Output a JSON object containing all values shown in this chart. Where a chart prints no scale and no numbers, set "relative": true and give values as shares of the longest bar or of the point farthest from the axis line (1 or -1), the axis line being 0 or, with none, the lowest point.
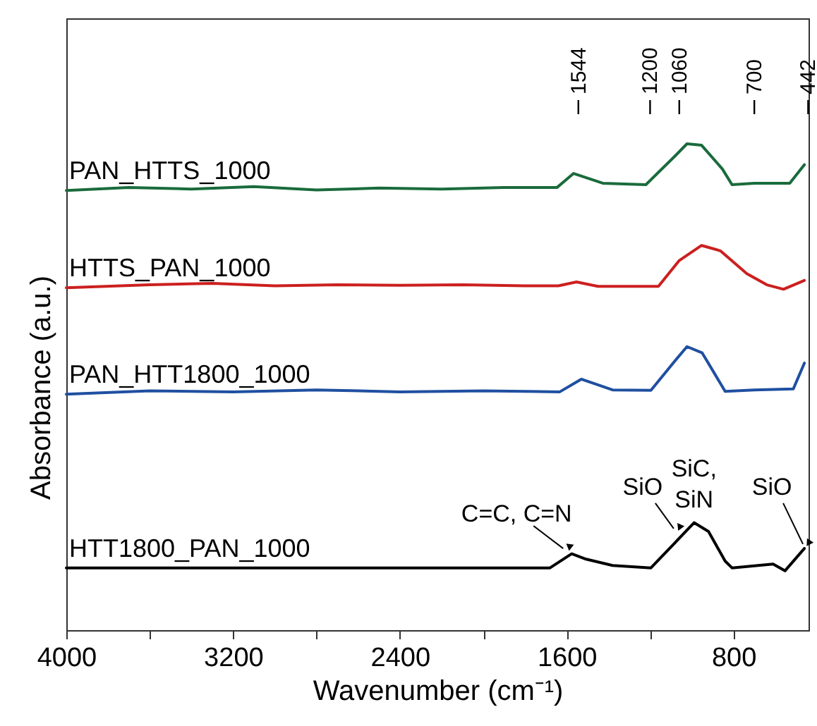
{
  "chart_data": {
    "type": "line",
    "relative": true,
    "xlabel": "Wavenumber (cm⁻¹)",
    "ylabel": "Absorbance (a.u.)",
    "xlim": [
      4000,
      440
    ],
    "xticks": [
      4000,
      {
        "value": 3600,
        "label": null
      },
      3200,
      {
        "value": 2800,
        "label": null
      },
      2400,
      {
        "value": 2000,
        "label": null
      },
      1600,
      {
        "value": 1200,
        "label": null
      },
      800
    ],
    "tick_labels": "x",
    "legend": false,
    "grid": false,
    "marker": "none",
    "line_style": "solid",
    "series": [
      {
        "name": "PAN_HTTS_1000",
        "color": "#1a6b3c",
        "x": [
          4000,
          3700,
          3400,
          3100,
          2800,
          2500,
          2200,
          1900,
          1647,
          1567,
          1427,
          1220,
          1080,
          1023,
          953,
          853,
          807,
          700,
          530,
          460
        ],
        "values": [
          0.904,
          0.91,
          0.907,
          0.912,
          0.905,
          0.909,
          0.907,
          0.91,
          0.91,
          0.939,
          0.919,
          0.916,
          0.975,
          1.0,
          0.997,
          0.948,
          0.916,
          0.919,
          0.919,
          0.957
        ]
      },
      {
        "name": "HTTS_PAN_1000",
        "color": "#cc1f1f",
        "x": [
          4000,
          3600,
          3300,
          3000,
          2700,
          2400,
          2100,
          1800,
          1640,
          1553,
          1450,
          1160,
          1060,
          953,
          863,
          736,
          640,
          560,
          460
        ],
        "values": [
          0.704,
          0.71,
          0.713,
          0.708,
          0.71,
          0.709,
          0.71,
          0.708,
          0.708,
          0.716,
          0.707,
          0.707,
          0.76,
          0.791,
          0.78,
          0.733,
          0.71,
          0.701,
          0.719
        ]
      },
      {
        "name": "PAN_HTT1800_1000",
        "color": "#1f4fa0",
        "x": [
          4000,
          3600,
          3200,
          2800,
          2400,
          2000,
          1633,
          1530,
          1380,
          1196,
          1080,
          1023,
          950,
          840,
          700,
          513,
          460
        ],
        "values": [
          0.485,
          0.492,
          0.49,
          0.494,
          0.49,
          0.492,
          0.49,
          0.516,
          0.494,
          0.493,
          0.554,
          0.583,
          0.57,
          0.491,
          0.494,
          0.496,
          0.549
        ]
      },
      {
        "name": "HTT1800_PAN_1000",
        "color": "#000000",
        "x": [
          4000,
          1680,
          1576,
          1507,
          1380,
          1196,
          1080,
          989,
          920,
          840,
          807,
          610,
          553,
          460
        ],
        "values": [
          0.128,
          0.128,
          0.157,
          0.146,
          0.133,
          0.128,
          0.18,
          0.221,
          0.203,
          0.142,
          0.128,
          0.136,
          0.122,
          0.168
        ]
      }
    ],
    "annotations": [
      {
        "text": "C=C, C=N",
        "x": 1610,
        "y": 0.165
      },
      {
        "text": "SiO",
        "x": 1080,
        "y": 0.206
      },
      {
        "text": "SiC, SiN",
        "x": 989,
        "y": 0.221
      },
      {
        "text": "SiO",
        "x": 460,
        "y": 0.174
      },
      {
        "text": "1544",
        "x": 1544
      },
      {
        "text": "1200",
        "x": 1200
      },
      {
        "text": "1060",
        "x": 1060
      },
      {
        "text": "700",
        "x": 700
      },
      {
        "text": "442",
        "x": 442
      }
    ]
  }
}
